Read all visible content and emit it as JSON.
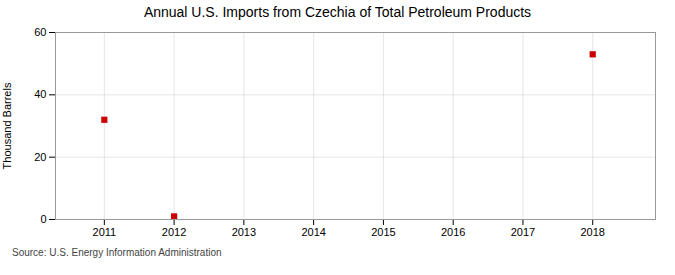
{
  "chart_data": {
    "type": "scatter",
    "title": "Annual U.S. Imports from Czechia of Total Petroleum Products",
    "ylabel": "Thousand Barrels",
    "source": "Source: U.S. Energy Information Administration",
    "x": [
      2011,
      2012,
      2018
    ],
    "values": [
      32,
      1,
      53
    ],
    "color": "#cc0000",
    "marker": "square",
    "xlim": [
      2010.3,
      2018.9
    ],
    "xticks": [
      2011,
      2012,
      2013,
      2014,
      2015,
      2016,
      2017,
      2018
    ],
    "ylim": [
      0,
      60
    ],
    "yticks": [
      0,
      20,
      40,
      60
    ],
    "grid": true
  }
}
